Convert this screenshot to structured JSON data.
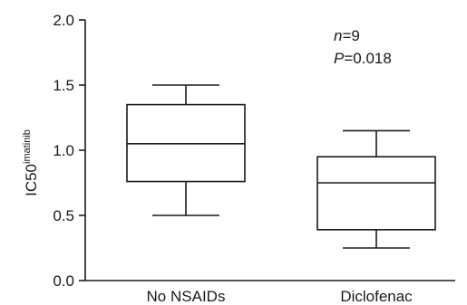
{
  "chart_data": {
    "type": "box",
    "ylabel": "IC50",
    "ylabel_superscript": "imatinib",
    "ylim": [
      0,
      2.0
    ],
    "yticks": [
      0.0,
      0.5,
      1.0,
      1.5,
      2.0
    ],
    "ytick_labels": [
      "0.0",
      "0.5",
      "1.0",
      "1.5",
      "2.0"
    ],
    "categories": [
      "No NSAIDs",
      "Diclofenac"
    ],
    "boxes": [
      {
        "category": "No NSAIDs",
        "whisker_low": 0.5,
        "q1": 0.76,
        "median": 1.05,
        "q3": 1.35,
        "whisker_high": 1.5
      },
      {
        "category": "Diclofenac",
        "whisker_low": 0.25,
        "q1": 0.39,
        "median": 0.75,
        "q3": 0.95,
        "whisker_high": 1.15
      }
    ],
    "annotations": [
      {
        "var": "n",
        "op": "=",
        "value": "9"
      },
      {
        "var": "P",
        "op": "=",
        "value": "0.018"
      }
    ],
    "grid": false,
    "line_color": "#1a1a1a"
  }
}
